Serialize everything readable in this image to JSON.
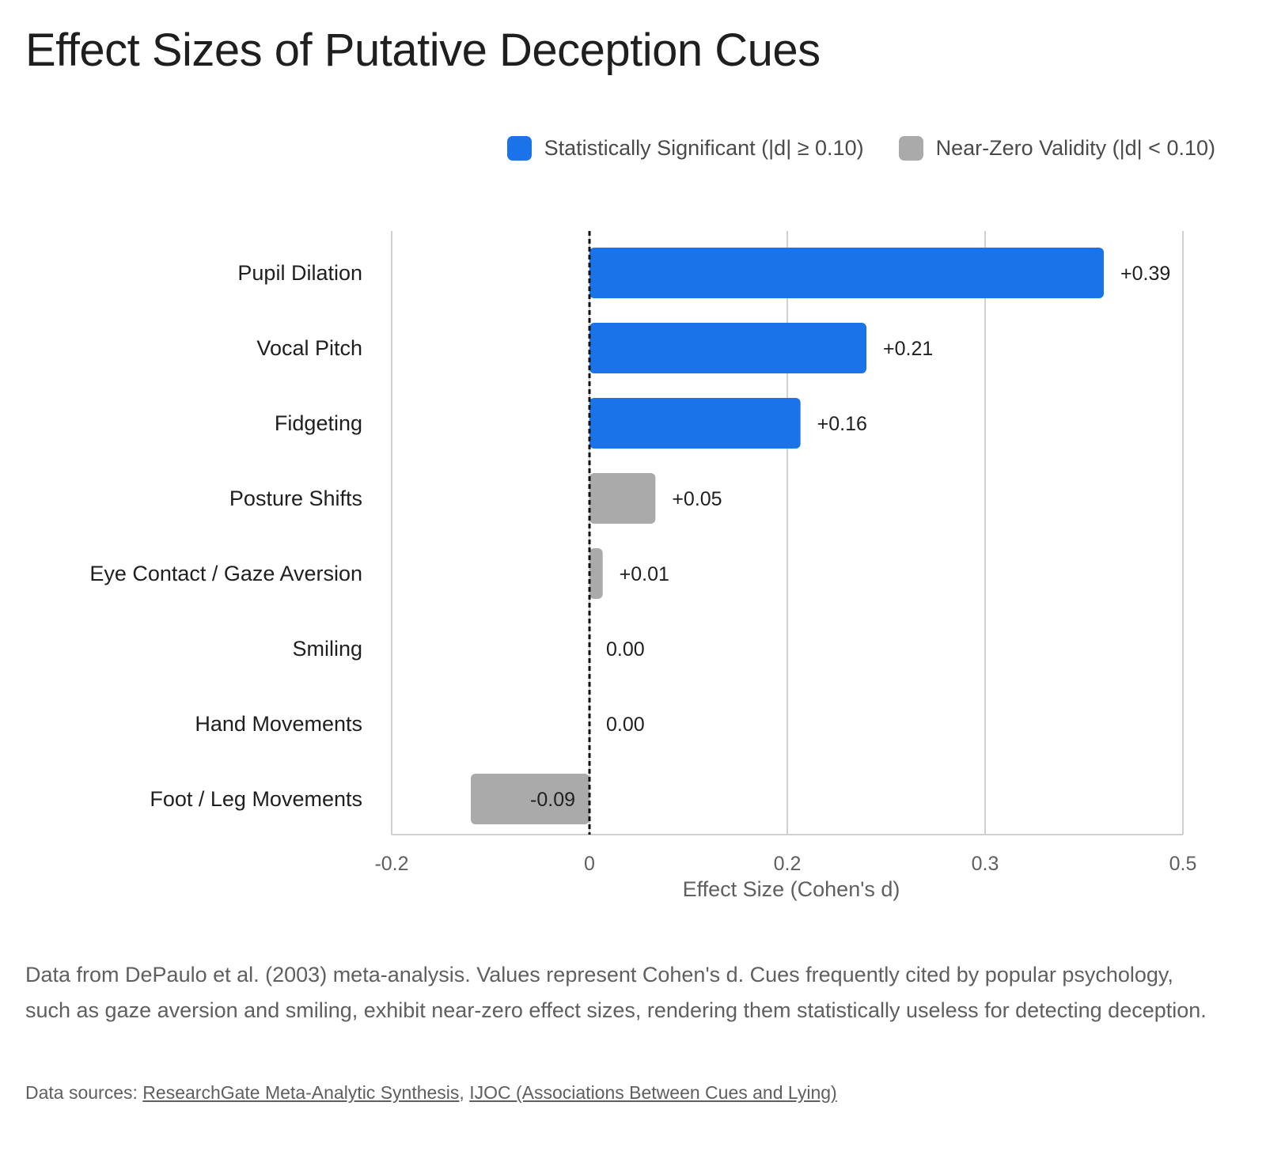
{
  "title": "Effect Sizes of Putative Deception Cues",
  "legend": [
    {
      "label": "Statistically Significant (|d| ≥ 0.10)",
      "color": "#1a73e8"
    },
    {
      "label": "Near-Zero Validity (|d| < 0.10)",
      "color": "#aaaaaa"
    }
  ],
  "chart_data": {
    "type": "bar",
    "orientation": "horizontal",
    "categories": [
      "Pupil Dilation",
      "Vocal Pitch",
      "Fidgeting",
      "Posture Shifts",
      "Eye Contact / Gaze Aversion",
      "Smiling",
      "Hand Movements",
      "Foot / Leg Movements"
    ],
    "values": [
      0.39,
      0.21,
      0.16,
      0.05,
      0.01,
      0.0,
      0.0,
      -0.09
    ],
    "value_labels": [
      "+0.39",
      "+0.21",
      "+0.16",
      "+0.05",
      "+0.01",
      "0.00",
      "0.00",
      "-0.09"
    ],
    "groups": [
      "significant",
      "significant",
      "significant",
      "near-zero",
      "near-zero",
      "near-zero",
      "near-zero",
      "near-zero"
    ],
    "colors": {
      "significant": "#1a73e8",
      "near-zero": "#aaaaaa"
    },
    "xlabel": "Effect Size (Cohen's d)",
    "xticks": [
      "-0.2",
      "0",
      "0.2",
      "0.3",
      "0.5"
    ],
    "xlim": [
      -0.15,
      0.45
    ],
    "grid": true,
    "reference_line": 0,
    "legend_position": "top-right"
  },
  "caption": "Data from DePaulo et al. (2003) meta-analysis. Values represent Cohen's d. Cues frequently cited by popular psychology, such as gaze aversion and smiling, exhibit near-zero effect sizes, rendering them statistically useless for detecting deception.",
  "sources": {
    "prefix": "Data sources: ",
    "links": [
      "ResearchGate Meta-Analytic Synthesis",
      "IJOC (Associations Between Cues and Lying)"
    ],
    "separator": ", "
  }
}
